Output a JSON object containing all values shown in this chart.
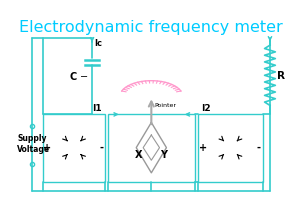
{
  "title": "Electrodynamic frequency meter",
  "title_color": "#00ccff",
  "title_fontsize": 11.5,
  "bg_color": "#ffffff",
  "cc": "#3cc",
  "lc": "#000000",
  "sc": "#ff99cc",
  "mc": "#999999",
  "supply_label": "Supply\nVoltage",
  "label_Ic": "Ic",
  "label_C": "C",
  "label_R": "R",
  "label_I1": "I1",
  "label_I2": "I2",
  "label_X": "X",
  "label_Y": "Y",
  "label_pointer": "Pointer",
  "label_plus": "+",
  "label_minus": "-"
}
